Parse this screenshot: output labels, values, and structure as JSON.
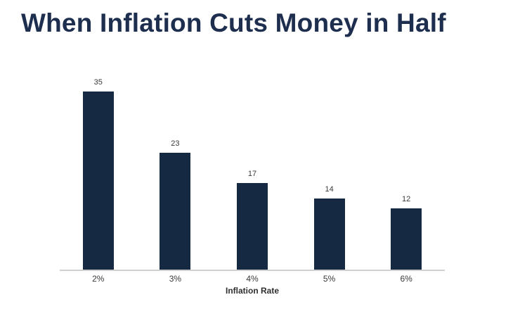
{
  "chart_data": {
    "type": "bar",
    "title": "When Inflation Cuts Money in Half",
    "categories": [
      "2%",
      "3%",
      "4%",
      "5%",
      "6%"
    ],
    "values": [
      35,
      23,
      17,
      14,
      12
    ],
    "value_labels": [
      "35",
      "23",
      "17",
      "14",
      "12"
    ],
    "xlabel": "Inflation Rate",
    "ylabel": "",
    "ylim": [
      0,
      38
    ],
    "grid": false,
    "legend": false,
    "bar_color": "#152a42",
    "title_color": "#1e2e4f",
    "axis_line_color": "#cfcfcf",
    "label_color": "#3a3a3a"
  }
}
